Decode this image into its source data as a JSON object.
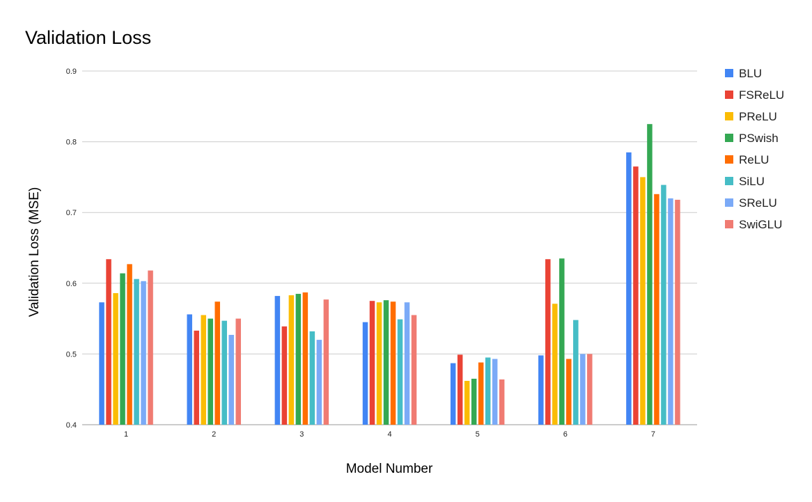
{
  "chart_data": {
    "type": "bar",
    "title": "Validation Loss",
    "xlabel": "Model Number",
    "ylabel": "Validation Loss (MSE)",
    "categories": [
      "1",
      "2",
      "3",
      "4",
      "5",
      "6",
      "7"
    ],
    "ylim": [
      0.4,
      0.9
    ],
    "yticks": [
      "0.4",
      "0.5",
      "0.6",
      "0.7",
      "0.8",
      "0.9"
    ],
    "grid": true,
    "legend_position": "right",
    "series": [
      {
        "name": "BLU",
        "color": "#4285F4",
        "values": [
          0.573,
          0.556,
          0.582,
          0.545,
          0.487,
          0.498,
          0.785
        ]
      },
      {
        "name": "FSReLU",
        "color": "#EA4335",
        "values": [
          0.634,
          0.533,
          0.539,
          0.575,
          0.499,
          0.634,
          0.765
        ]
      },
      {
        "name": "PReLU",
        "color": "#FBBC04",
        "values": [
          0.586,
          0.555,
          0.583,
          0.573,
          0.462,
          0.571,
          0.75
        ]
      },
      {
        "name": "PSwish",
        "color": "#34A853",
        "values": [
          0.614,
          0.55,
          0.585,
          0.576,
          0.465,
          0.635,
          0.825
        ]
      },
      {
        "name": "ReLU",
        "color": "#FF6D01",
        "values": [
          0.627,
          0.574,
          0.587,
          0.574,
          0.488,
          0.493,
          0.726
        ]
      },
      {
        "name": "SiLU",
        "color": "#46BDC6",
        "values": [
          0.606,
          0.547,
          0.532,
          0.549,
          0.495,
          0.548,
          0.739
        ]
      },
      {
        "name": "SReLU",
        "color": "#7BAAF7",
        "values": [
          0.603,
          0.527,
          0.52,
          0.573,
          0.493,
          0.5,
          0.72
        ]
      },
      {
        "name": "SwiGLU",
        "color": "#F07B72",
        "values": [
          0.618,
          0.55,
          0.577,
          0.555,
          0.464,
          0.5,
          0.718
        ]
      }
    ]
  }
}
